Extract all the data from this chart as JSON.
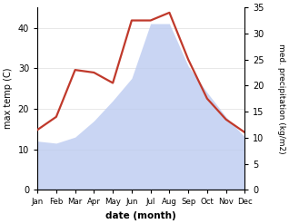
{
  "months": [
    "Jan",
    "Feb",
    "Mar",
    "Apr",
    "May",
    "Jun",
    "Jul",
    "Aug",
    "Sep",
    "Oct",
    "Nov",
    "Dec"
  ],
  "max_temp": [
    12.0,
    11.5,
    13.0,
    17.0,
    22.0,
    27.5,
    41.0,
    41.0,
    30.5,
    24.0,
    18.0,
    13.0
  ],
  "precipitation": [
    11.5,
    14.0,
    23.0,
    22.5,
    20.5,
    32.5,
    32.5,
    34.0,
    25.0,
    17.5,
    13.5,
    11.0
  ],
  "temp_ylim": [
    0,
    45
  ],
  "precip_ylim": [
    0,
    35
  ],
  "temp_yticks": [
    0,
    10,
    20,
    30,
    40
  ],
  "precip_yticks": [
    0,
    5,
    10,
    15,
    20,
    25,
    30,
    35
  ],
  "xlabel": "date (month)",
  "ylabel_left": "max temp (C)",
  "ylabel_right": "med. precipitation (kg/m2)",
  "fill_color": "#b8c8f0",
  "fill_alpha": 0.75,
  "line_color": "#c0392b",
  "line_width": 1.6,
  "bg_color": "#ffffff"
}
